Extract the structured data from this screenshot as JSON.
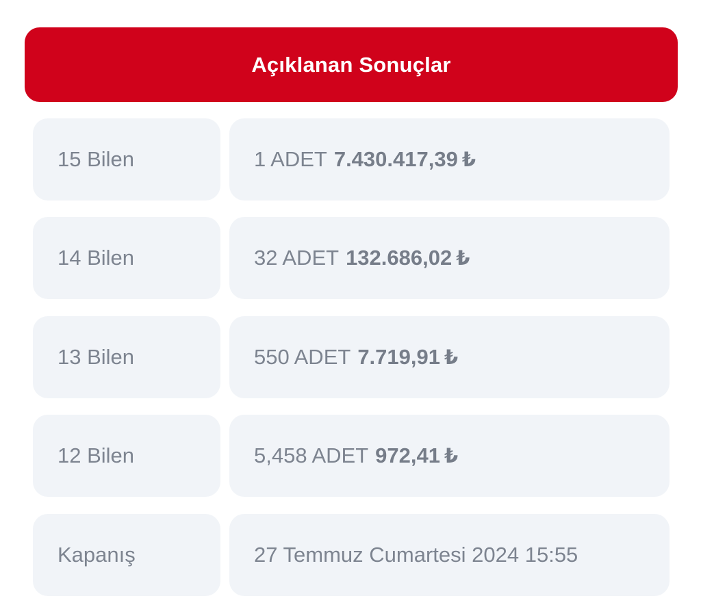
{
  "header": {
    "title": "Açıklanan Sonuçlar"
  },
  "results": [
    {
      "label": "15 Bilen",
      "count_text": "1 ADET",
      "amount": "7.430.417,39",
      "currency": "₺"
    },
    {
      "label": "14 Bilen",
      "count_text": "32 ADET",
      "amount": "132.686,02",
      "currency": "₺"
    },
    {
      "label": "13 Bilen",
      "count_text": "550 ADET",
      "amount": "7.719,91",
      "currency": "₺"
    },
    {
      "label": "12 Bilen",
      "count_text": "5,458 ADET",
      "amount": "972,41",
      "currency": "₺"
    }
  ],
  "closing": {
    "label": "Kapanış",
    "value": "27 Temmuz Cumartesi 2024 15:55"
  },
  "colors": {
    "header_bg": "#d0021b",
    "cell_bg": "#f1f4f8",
    "text": "#7d8490"
  }
}
